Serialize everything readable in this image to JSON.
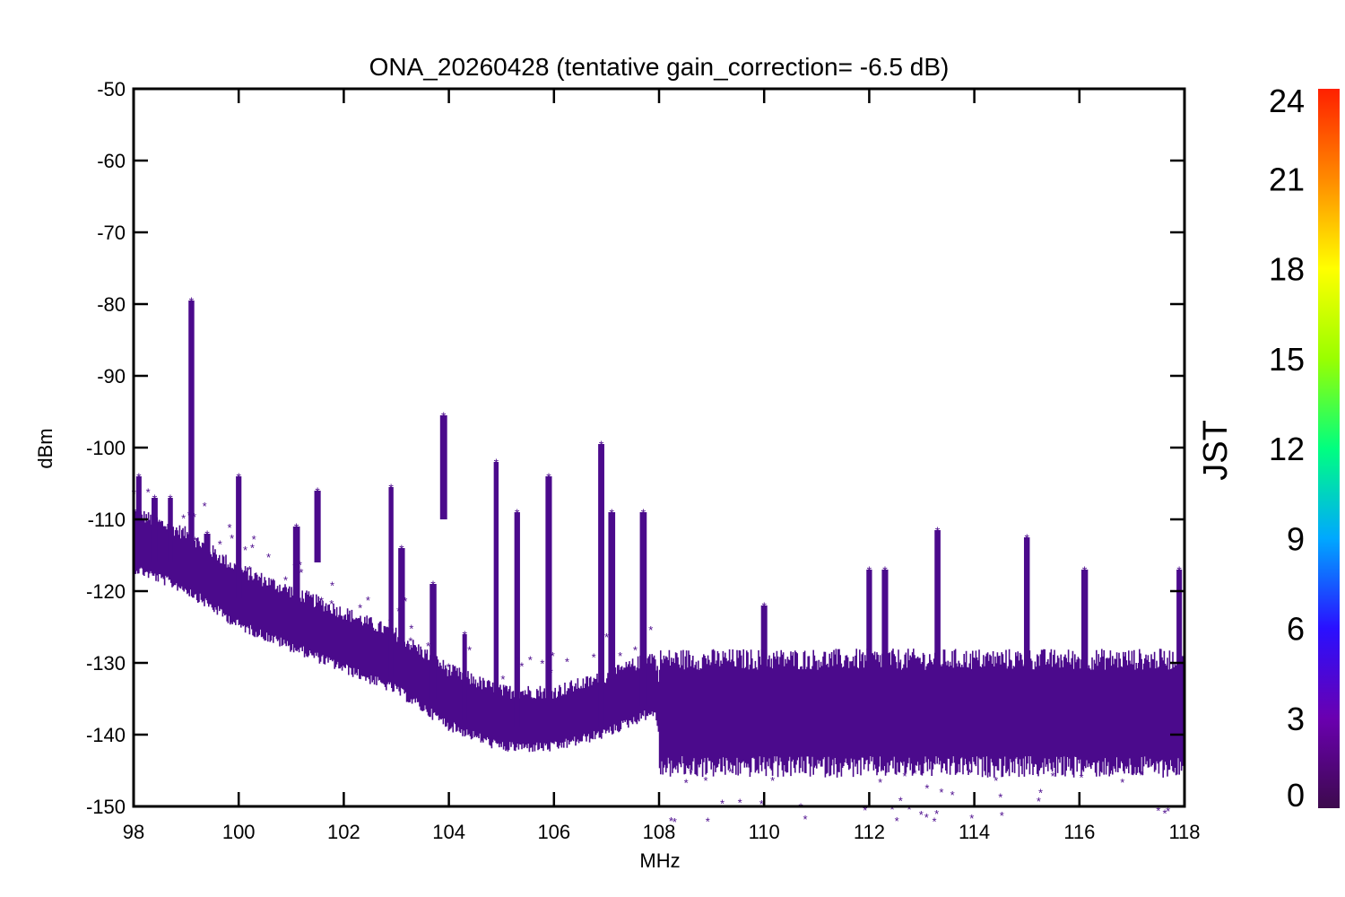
{
  "chart_data": {
    "type": "scatter",
    "title": "ONA_20260428 (tentative gain_correction= -6.5 dB)",
    "xlabel": "MHz",
    "ylabel": "dBm",
    "xlim": [
      98,
      118
    ],
    "ylim": [
      -150,
      -50
    ],
    "xticks": [
      98,
      100,
      102,
      104,
      106,
      108,
      110,
      112,
      114,
      116,
      118
    ],
    "yticks": [
      -50,
      -60,
      -70,
      -80,
      -90,
      -100,
      -110,
      -120,
      -130,
      -140,
      -150
    ],
    "marker_color": "#4b0a8c",
    "colorbar": {
      "label": "JST",
      "range": [
        0,
        24
      ],
      "ticks": [
        0,
        3,
        6,
        9,
        12,
        15,
        18,
        21,
        24
      ],
      "colors": [
        "#3d0a4d",
        "#6a00b0",
        "#2a10ff",
        "#00a8ff",
        "#00ff80",
        "#9aff00",
        "#ffff00",
        "#ff8a00",
        "#ff2000"
      ]
    },
    "noise_floor": [
      {
        "x": 98.0,
        "y": -114
      },
      {
        "x": 99.0,
        "y": -117
      },
      {
        "x": 100.0,
        "y": -122
      },
      {
        "x": 101.0,
        "y": -125
      },
      {
        "x": 102.0,
        "y": -128
      },
      {
        "x": 103.0,
        "y": -131
      },
      {
        "x": 104.0,
        "y": -136
      },
      {
        "x": 105.0,
        "y": -139
      },
      {
        "x": 106.0,
        "y": -139
      },
      {
        "x": 107.0,
        "y": -137
      },
      {
        "x": 107.9,
        "y": -134
      },
      {
        "x": 108.0,
        "y": -137
      },
      {
        "x": 118.0,
        "y": -137
      }
    ],
    "spikes": [
      {
        "x": 98.1,
        "top": -104,
        "base": -114
      },
      {
        "x": 98.4,
        "top": -107,
        "base": -116
      },
      {
        "x": 98.7,
        "top": -107,
        "base": -116
      },
      {
        "x": 99.1,
        "top": -79.5,
        "base": -117
      },
      {
        "x": 99.4,
        "top": -112,
        "base": -119
      },
      {
        "x": 100.0,
        "top": -104,
        "base": -121
      },
      {
        "x": 101.1,
        "top": -111,
        "base": -126
      },
      {
        "x": 101.5,
        "top": -106,
        "base": -116
      },
      {
        "x": 102.9,
        "top": -105.5,
        "base": -132
      },
      {
        "x": 103.1,
        "top": -114,
        "base": -133
      },
      {
        "x": 103.7,
        "top": -119,
        "base": -135
      },
      {
        "x": 103.9,
        "top": -95.5,
        "base": -110
      },
      {
        "x": 104.3,
        "top": -126,
        "base": -138
      },
      {
        "x": 104.9,
        "top": -102,
        "base": -139
      },
      {
        "x": 105.3,
        "top": -109,
        "base": -139
      },
      {
        "x": 105.9,
        "top": -104,
        "base": -139
      },
      {
        "x": 106.9,
        "top": -99.5,
        "base": -139
      },
      {
        "x": 107.1,
        "top": -109,
        "base": -138
      },
      {
        "x": 107.7,
        "top": -109,
        "base": -136
      },
      {
        "x": 110.0,
        "top": -122,
        "base": -131
      },
      {
        "x": 112.0,
        "top": -117,
        "base": -131
      },
      {
        "x": 112.3,
        "top": -117,
        "base": -131
      },
      {
        "x": 113.3,
        "top": -111.5,
        "base": -131
      },
      {
        "x": 115.0,
        "top": -112.5,
        "base": -131
      },
      {
        "x": 116.1,
        "top": -117,
        "base": -131
      },
      {
        "x": 117.9,
        "top": -117,
        "base": -131
      }
    ]
  }
}
